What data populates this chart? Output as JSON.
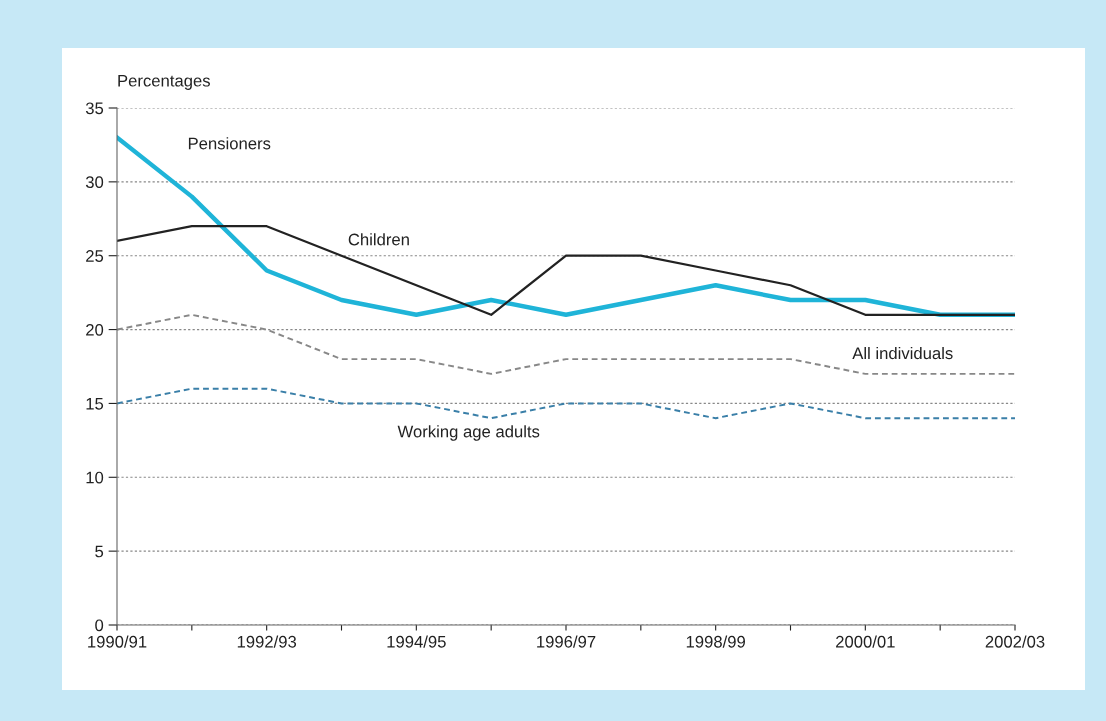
{
  "chart_data": {
    "type": "line",
    "ylabel": "Percentages",
    "categories": [
      "1990/91",
      null,
      "1992/93",
      null,
      "1994/95",
      null,
      "1996/97",
      null,
      "1998/99",
      null,
      "2000/01",
      null,
      "2002/03"
    ],
    "series": [
      {
        "name": "Pensioners",
        "color": "#1fb4d8",
        "line_style": "solid",
        "values": [
          33,
          29,
          24,
          22,
          21,
          22,
          21,
          22,
          23,
          22,
          22,
          21,
          21
        ]
      },
      {
        "name": "Children",
        "color": "#222222",
        "line_style": "solid",
        "values": [
          26,
          27,
          27,
          25,
          23,
          21,
          25,
          25,
          24,
          23,
          21,
          21,
          21
        ]
      },
      {
        "name": "All individuals",
        "color": "#888888",
        "line_style": "dashed",
        "values": [
          20,
          21,
          20,
          18,
          18,
          17,
          18,
          18,
          18,
          18,
          17,
          17,
          17
        ]
      },
      {
        "name": "Working age adults",
        "color": "#3a7fa8",
        "line_style": "dashed",
        "values": [
          15,
          16,
          16,
          15,
          15,
          14,
          15,
          15,
          14,
          15,
          14,
          14,
          14
        ]
      }
    ],
    "ylim": [
      0,
      35
    ],
    "yticks": [
      0,
      5,
      10,
      15,
      20,
      25,
      30,
      35
    ],
    "grid": "y",
    "legend": false,
    "marker": "none"
  }
}
